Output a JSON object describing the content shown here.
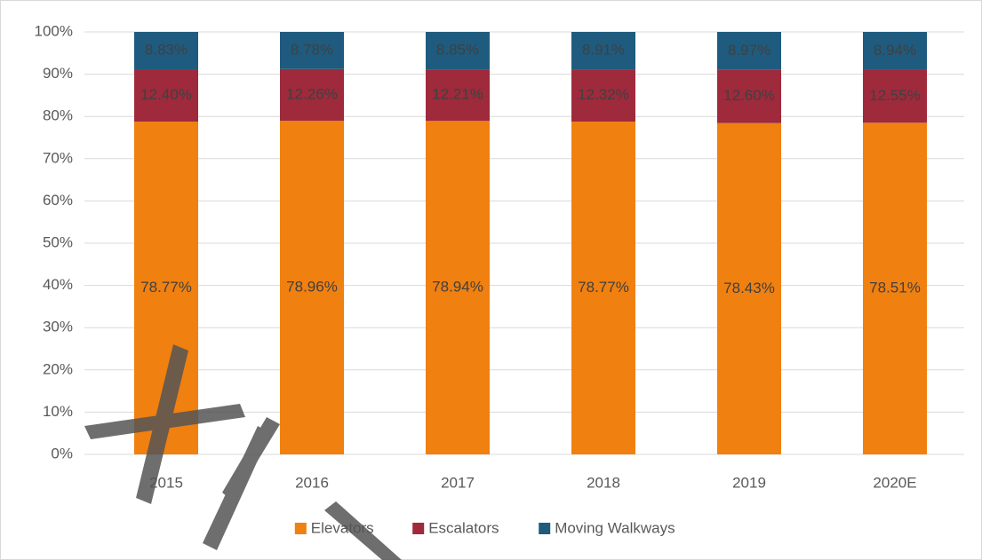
{
  "chart_data": {
    "type": "stacked_bar",
    "categories": [
      "2015",
      "2016",
      "2017",
      "2018",
      "2019",
      "2020E"
    ],
    "series": [
      {
        "name": "Elevators",
        "color": "#f08010",
        "values": [
          78.77,
          78.96,
          78.94,
          78.77,
          78.43,
          78.51
        ],
        "value_labels": [
          "78.77%",
          "78.96%",
          "78.94%",
          "78.77%",
          "78.43%",
          "78.51%"
        ]
      },
      {
        "name": "Escalators",
        "color": "#9e2a3c",
        "values": [
          12.4,
          12.26,
          12.21,
          12.32,
          12.6,
          12.55
        ],
        "value_labels": [
          "12.40%",
          "12.26%",
          "12.21%",
          "12.32%",
          "12.60%",
          "12.55%"
        ]
      },
      {
        "name": "Moving Walkways",
        "color": "#1f5b7e",
        "values": [
          8.83,
          8.78,
          8.85,
          8.91,
          8.97,
          8.94
        ],
        "value_labels": [
          "8.83%",
          "8.78%",
          "8.85%",
          "8.91%",
          "8.97%",
          "8.94%"
        ]
      }
    ],
    "ylim": [
      0,
      100
    ],
    "yticks": [
      {
        "value": 0,
        "label": "0%"
      },
      {
        "value": 10,
        "label": "10%"
      },
      {
        "value": 20,
        "label": "20%"
      },
      {
        "value": 30,
        "label": "30%"
      },
      {
        "value": 40,
        "label": "40%"
      },
      {
        "value": 50,
        "label": "50%"
      },
      {
        "value": 60,
        "label": "60%"
      },
      {
        "value": 70,
        "label": "70%"
      },
      {
        "value": 80,
        "label": "80%"
      },
      {
        "value": 90,
        "label": "90%"
      },
      {
        "value": 100,
        "label": "100%"
      }
    ],
    "grid": true,
    "legend": "bottom"
  }
}
